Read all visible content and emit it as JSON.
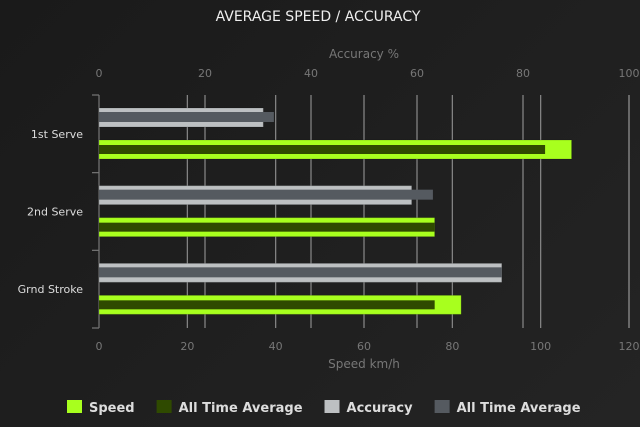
{
  "chart_data": {
    "type": "bar",
    "orientation": "horizontal",
    "title": "AVERAGE SPEED / ACCURACY",
    "categories": [
      "1st Serve",
      "2nd Serve",
      "Grnd Stroke"
    ],
    "top_axis": {
      "label": "Accuracy %",
      "range": [
        0,
        100
      ],
      "ticks": [
        0,
        20,
        40,
        60,
        80,
        100
      ]
    },
    "bottom_axis": {
      "label": "Speed km/h",
      "range": [
        0,
        120
      ],
      "ticks": [
        0,
        20,
        40,
        60,
        80,
        100,
        120
      ]
    },
    "grid": true,
    "legend_position": "bottom",
    "series": [
      {
        "name": "Speed",
        "axis": "bottom",
        "color": "#a8ff1e",
        "values": [
          107,
          76,
          82
        ]
      },
      {
        "name": "All Time Average",
        "axis": "bottom",
        "color": "#2f4a00",
        "values": [
          101,
          76,
          76
        ]
      },
      {
        "name": "Accuracy",
        "axis": "top",
        "color": "#bdc0c2",
        "values": [
          31,
          59,
          76
        ]
      },
      {
        "name": "All Time Average",
        "axis": "top",
        "color": "#555a60",
        "values": [
          33,
          63,
          76
        ]
      }
    ]
  }
}
